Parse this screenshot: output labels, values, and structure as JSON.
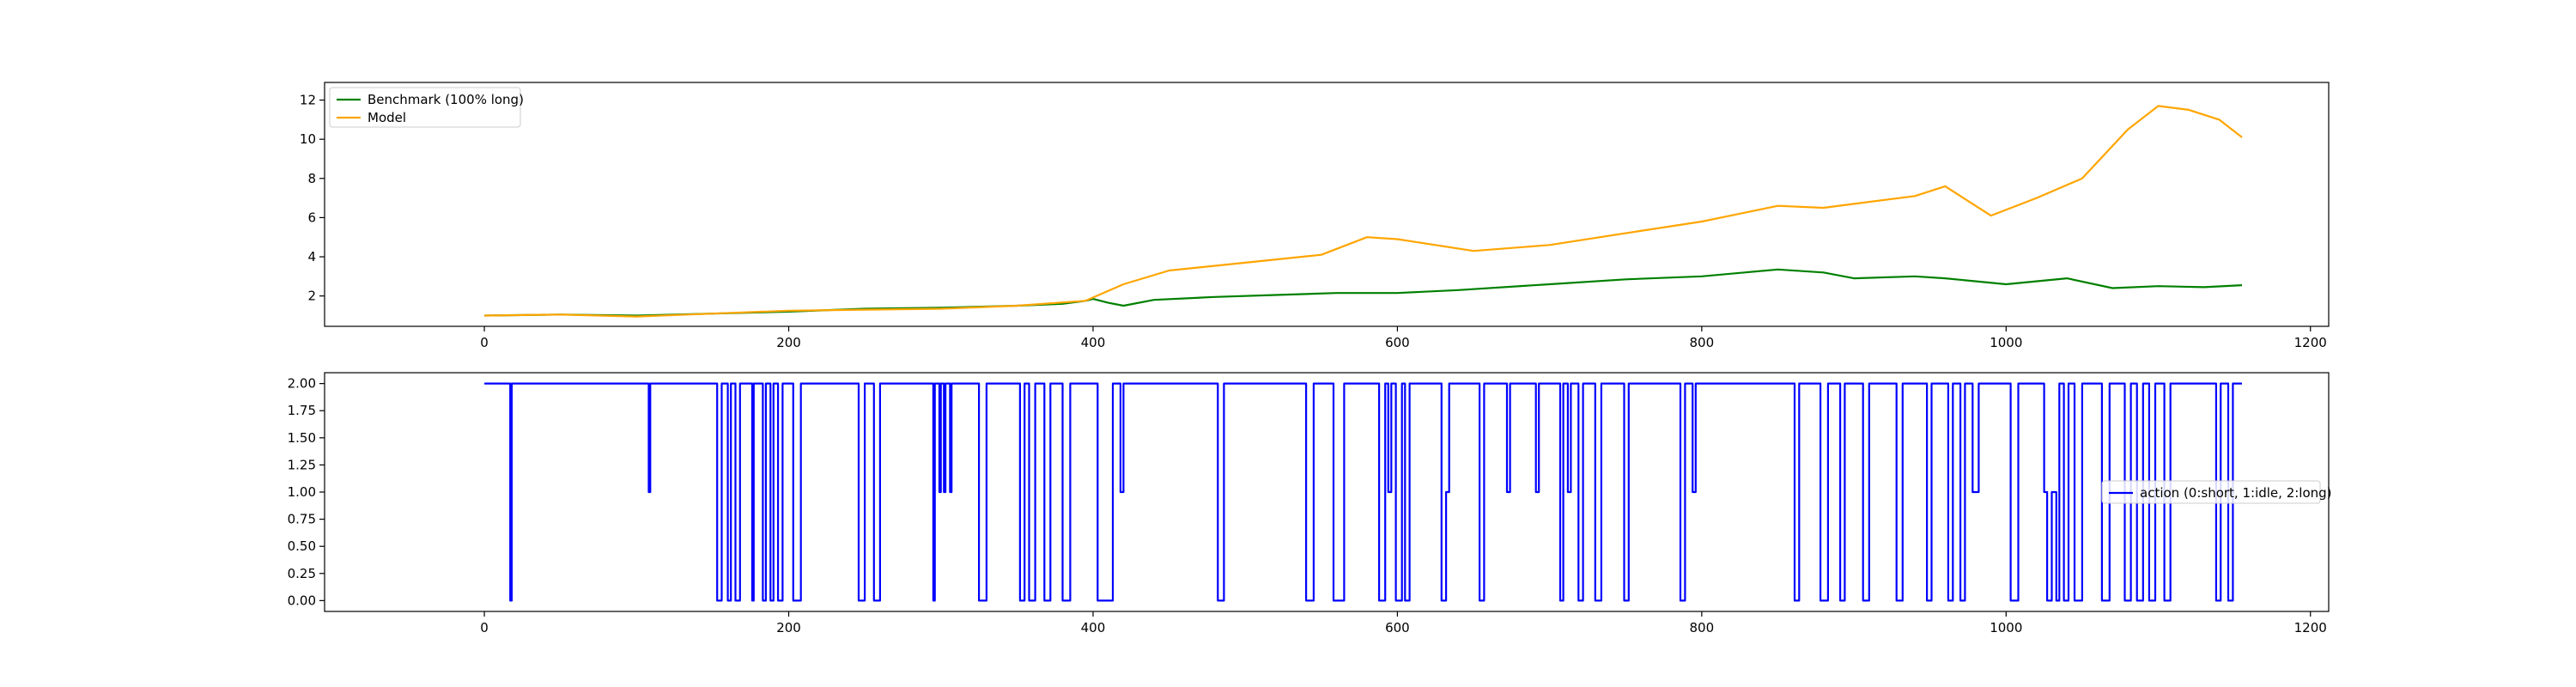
{
  "chart_data": [
    {
      "type": "line",
      "title": "",
      "xlabel": "",
      "ylabel": "",
      "xlim": [
        -105,
        1212
      ],
      "ylim": [
        0.45,
        12.9
      ],
      "xticks": [
        0,
        200,
        400,
        600,
        800,
        1000,
        1200
      ],
      "yticks": [
        2,
        4,
        6,
        8,
        10,
        12
      ],
      "ytick_format": "int",
      "grid": false,
      "legend_position": "upper-left",
      "series": [
        {
          "name": "Benchmark (100% long)",
          "color": "#008000",
          "points": [
            [
              0,
              1.0
            ],
            [
              50,
              1.05
            ],
            [
              100,
              1.0
            ],
            [
              150,
              1.1
            ],
            [
              200,
              1.2
            ],
            [
              250,
              1.35
            ],
            [
              300,
              1.4
            ],
            [
              350,
              1.5
            ],
            [
              380,
              1.6
            ],
            [
              395,
              1.75
            ],
            [
              400,
              1.85
            ],
            [
              410,
              1.65
            ],
            [
              420,
              1.5
            ],
            [
              440,
              1.8
            ],
            [
              480,
              1.95
            ],
            [
              520,
              2.05
            ],
            [
              560,
              2.15
            ],
            [
              600,
              2.15
            ],
            [
              640,
              2.3
            ],
            [
              700,
              2.6
            ],
            [
              750,
              2.85
            ],
            [
              800,
              3.0
            ],
            [
              850,
              3.35
            ],
            [
              880,
              3.2
            ],
            [
              900,
              2.9
            ],
            [
              940,
              3.0
            ],
            [
              960,
              2.9
            ],
            [
              1000,
              2.6
            ],
            [
              1040,
              2.9
            ],
            [
              1070,
              2.4
            ],
            [
              1100,
              2.5
            ],
            [
              1130,
              2.45
            ],
            [
              1155,
              2.55
            ]
          ]
        },
        {
          "name": "Model",
          "color": "#ffa500",
          "points": [
            [
              0,
              1.0
            ],
            [
              50,
              1.05
            ],
            [
              100,
              0.95
            ],
            [
              150,
              1.1
            ],
            [
              200,
              1.25
            ],
            [
              250,
              1.3
            ],
            [
              300,
              1.35
            ],
            [
              350,
              1.5
            ],
            [
              395,
              1.75
            ],
            [
              420,
              2.6
            ],
            [
              450,
              3.3
            ],
            [
              500,
              3.7
            ],
            [
              550,
              4.1
            ],
            [
              580,
              5.0
            ],
            [
              600,
              4.9
            ],
            [
              650,
              4.3
            ],
            [
              700,
              4.6
            ],
            [
              750,
              5.2
            ],
            [
              800,
              5.8
            ],
            [
              850,
              6.6
            ],
            [
              880,
              6.5
            ],
            [
              900,
              6.7
            ],
            [
              940,
              7.1
            ],
            [
              960,
              7.6
            ],
            [
              990,
              6.1
            ],
            [
              1020,
              7.0
            ],
            [
              1050,
              8.0
            ],
            [
              1080,
              10.5
            ],
            [
              1100,
              11.7
            ],
            [
              1120,
              11.5
            ],
            [
              1140,
              11.0
            ],
            [
              1155,
              10.1
            ]
          ]
        }
      ]
    },
    {
      "type": "line",
      "title": "",
      "xlabel": "",
      "ylabel": "",
      "xlim": [
        -105,
        1212
      ],
      "ylim": [
        -0.1,
        2.1
      ],
      "xticks": [
        0,
        200,
        400,
        600,
        800,
        1000,
        1200
      ],
      "yticks": [
        0.0,
        0.25,
        0.5,
        0.75,
        1.0,
        1.25,
        1.5,
        1.75,
        2.0
      ],
      "ytick_format": "2dp",
      "grid": false,
      "legend_position": "center-right",
      "series": [
        {
          "name": "action (0:short, 1:idle, 2:long)",
          "color": "#0000ff",
          "changes": [
            [
              0,
              2
            ],
            [
              17,
              0
            ],
            [
              18,
              2
            ],
            [
              108,
              1
            ],
            [
              109,
              2
            ],
            [
              153,
              0
            ],
            [
              156,
              2
            ],
            [
              160,
              0
            ],
            [
              162,
              2
            ],
            [
              165,
              0
            ],
            [
              168,
              2
            ],
            [
              176,
              0
            ],
            [
              177,
              2
            ],
            [
              183,
              0
            ],
            [
              185,
              2
            ],
            [
              188,
              0
            ],
            [
              190,
              2
            ],
            [
              193,
              0
            ],
            [
              196,
              2
            ],
            [
              203,
              0
            ],
            [
              208,
              2
            ],
            [
              246,
              0
            ],
            [
              250,
              2
            ],
            [
              256,
              0
            ],
            [
              260,
              2
            ],
            [
              295,
              0
            ],
            [
              296,
              2
            ],
            [
              299,
              1
            ],
            [
              300,
              2
            ],
            [
              302,
              1
            ],
            [
              303,
              2
            ],
            [
              306,
              1
            ],
            [
              307,
              2
            ],
            [
              325,
              0
            ],
            [
              330,
              2
            ],
            [
              352,
              0
            ],
            [
              355,
              2
            ],
            [
              358,
              0
            ],
            [
              362,
              2
            ],
            [
              368,
              0
            ],
            [
              372,
              2
            ],
            [
              380,
              0
            ],
            [
              385,
              2
            ],
            [
              403,
              0
            ],
            [
              413,
              2
            ],
            [
              418,
              1
            ],
            [
              420,
              2
            ],
            [
              482,
              0
            ],
            [
              486,
              2
            ],
            [
              540,
              0
            ],
            [
              545,
              2
            ],
            [
              558,
              0
            ],
            [
              565,
              2
            ],
            [
              588,
              0
            ],
            [
              592,
              2
            ],
            [
              594,
              1
            ],
            [
              596,
              2
            ],
            [
              599,
              0
            ],
            [
              603,
              2
            ],
            [
              605,
              0
            ],
            [
              608,
              2
            ],
            [
              629,
              0
            ],
            [
              632,
              1
            ],
            [
              634,
              2
            ],
            [
              654,
              0
            ],
            [
              657,
              2
            ],
            [
              672,
              1
            ],
            [
              674,
              2
            ],
            [
              691,
              1
            ],
            [
              693,
              2
            ],
            [
              707,
              0
            ],
            [
              709,
              2
            ],
            [
              712,
              1
            ],
            [
              714,
              2
            ],
            [
              719,
              0
            ],
            [
              722,
              2
            ],
            [
              730,
              0
            ],
            [
              734,
              2
            ],
            [
              749,
              0
            ],
            [
              752,
              2
            ],
            [
              786,
              0
            ],
            [
              789,
              2
            ],
            [
              794,
              1
            ],
            [
              796,
              2
            ],
            [
              861,
              0
            ],
            [
              864,
              2
            ],
            [
              878,
              0
            ],
            [
              883,
              2
            ],
            [
              891,
              0
            ],
            [
              894,
              2
            ],
            [
              906,
              0
            ],
            [
              910,
              2
            ],
            [
              928,
              0
            ],
            [
              932,
              2
            ],
            [
              948,
              0
            ],
            [
              951,
              2
            ],
            [
              962,
              0
            ],
            [
              965,
              2
            ],
            [
              970,
              0
            ],
            [
              973,
              2
            ],
            [
              978,
              1
            ],
            [
              982,
              2
            ],
            [
              1003,
              0
            ],
            [
              1008,
              2
            ],
            [
              1025,
              1
            ],
            [
              1027,
              0
            ],
            [
              1030,
              1
            ],
            [
              1033,
              0
            ],
            [
              1035,
              2
            ],
            [
              1038,
              0
            ],
            [
              1041,
              2
            ],
            [
              1045,
              0
            ],
            [
              1050,
              2
            ],
            [
              1063,
              0
            ],
            [
              1068,
              2
            ],
            [
              1078,
              0
            ],
            [
              1082,
              2
            ],
            [
              1086,
              0
            ],
            [
              1090,
              2
            ],
            [
              1094,
              0
            ],
            [
              1098,
              2
            ],
            [
              1104,
              0
            ],
            [
              1108,
              2
            ],
            [
              1138,
              0
            ],
            [
              1141,
              2
            ],
            [
              1146,
              0
            ],
            [
              1149,
              2
            ],
            [
              1155,
              2
            ]
          ]
        }
      ]
    }
  ]
}
